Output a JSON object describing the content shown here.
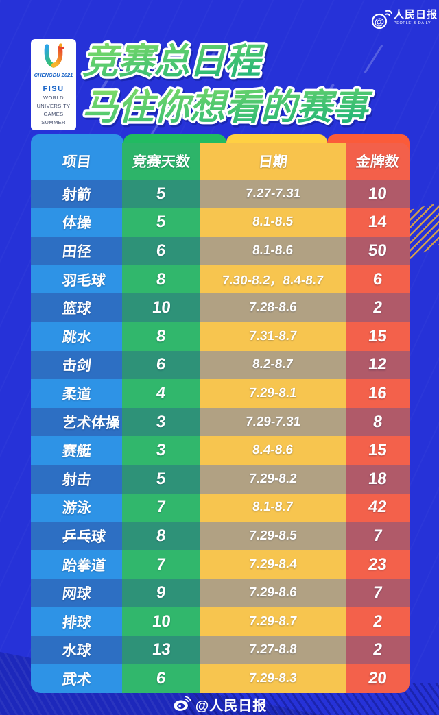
{
  "page": {
    "brand": {
      "masthead": "人民日报",
      "masthead_sub": "PEOPLE' S DAILY"
    },
    "logo_card": {
      "chengdu": "CHENGDU 2021",
      "fisu": "FISU",
      "lines": [
        "WORLD",
        "UNIVERSITY",
        "GAMES",
        "SUMMER"
      ]
    },
    "title_line1": "竞赛总日程",
    "title_line2": "马住你想看的赛事",
    "footer": {
      "handle": "@人民日报"
    }
  },
  "chart_data": {
    "type": "table",
    "title": "竞赛总日程 马住你想看的赛事",
    "columns": [
      "项目",
      "竞赛天数",
      "日期",
      "金牌数"
    ],
    "rows": [
      [
        "射箭",
        "5",
        "7.27-7.31",
        "10"
      ],
      [
        "体操",
        "5",
        "8.1-8.5",
        "14"
      ],
      [
        "田径",
        "6",
        "8.1-8.6",
        "50"
      ],
      [
        "羽毛球",
        "8",
        "7.30-8.2，8.4-8.7",
        "6"
      ],
      [
        "篮球",
        "10",
        "7.28-8.6",
        "2"
      ],
      [
        "跳水",
        "8",
        "7.31-8.7",
        "15"
      ],
      [
        "击剑",
        "6",
        "8.2-8.7",
        "12"
      ],
      [
        "柔道",
        "4",
        "7.29-8.1",
        "16"
      ],
      [
        "艺术体操",
        "3",
        "7.29-7.31",
        "8"
      ],
      [
        "赛艇",
        "3",
        "8.4-8.6",
        "15"
      ],
      [
        "射击",
        "5",
        "7.29-8.2",
        "18"
      ],
      [
        "游泳",
        "7",
        "8.1-8.7",
        "42"
      ],
      [
        "乒乓球",
        "8",
        "7.29-8.5",
        "7"
      ],
      [
        "跆拳道",
        "7",
        "7.29-8.4",
        "23"
      ],
      [
        "网球",
        "9",
        "7.29-8.6",
        "7"
      ],
      [
        "排球",
        "10",
        "7.29-8.7",
        "2"
      ],
      [
        "水球",
        "13",
        "7.27-8.8",
        "2"
      ],
      [
        "武术",
        "6",
        "7.29-8.3",
        "20"
      ]
    ],
    "layout_hints": {
      "row_shading": "odd rows darkened per-column",
      "column_colors": [
        "blue",
        "green",
        "yellow",
        "red"
      ]
    }
  },
  "colors": {
    "bg": "#2632d8",
    "header": {
      "blue": "#2e93e6",
      "green": "#2db469",
      "yellow": "#f8c34c",
      "red": "#f3604a"
    },
    "rowLight": {
      "blue": "#2e93e6",
      "green": "#31b76c",
      "yellow": "#f7c54f",
      "red": "#f3614b"
    },
    "rowDark": {
      "blue": "#2d6fc3",
      "green": "#2e9278",
      "yellow": "#b1a183",
      "red": "#b05a69"
    },
    "titleTop": "#84dd66",
    "titleBottom": "#1fb478"
  }
}
